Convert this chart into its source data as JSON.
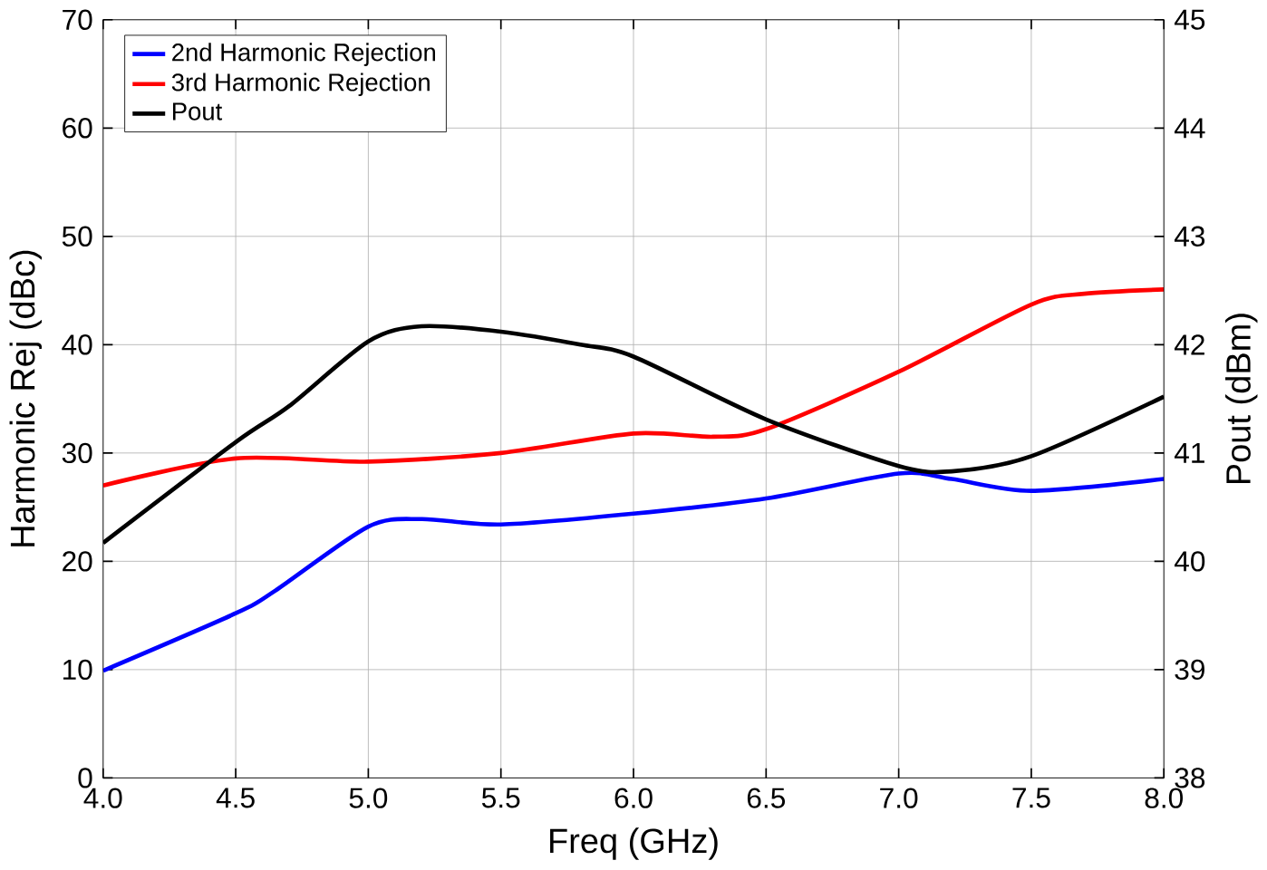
{
  "chart_data": {
    "type": "line",
    "xlabel": "Freq (GHz)",
    "ylabel": "Harmonic Rej (dBc)",
    "y2label": "Pout (dBm)",
    "xlim": [
      4,
      8
    ],
    "xticks": [
      {
        "value": 4,
        "label": "4.0"
      },
      {
        "value": 4.5,
        "label": "4.5"
      },
      {
        "value": 5,
        "label": "5.0"
      },
      {
        "value": 5.5,
        "label": "5.5"
      },
      {
        "value": 6,
        "label": "6.0"
      },
      {
        "value": 6.5,
        "label": "6.5"
      },
      {
        "value": 7,
        "label": "7.0"
      },
      {
        "value": 7.5,
        "label": "7.5"
      },
      {
        "value": 8,
        "label": "8.0"
      }
    ],
    "ylim": [
      0,
      70
    ],
    "yticks": [
      0,
      10,
      20,
      30,
      40,
      50,
      60,
      70
    ],
    "y2lim": [
      38,
      45
    ],
    "y2ticks": [
      38,
      39,
      40,
      41,
      42,
      43,
      44,
      45
    ],
    "grid": true,
    "legend": "top left",
    "line_style": "solid",
    "marker": "none",
    "series": [
      {
        "name": "2nd Harmonic Rejection",
        "color": "#0000ff",
        "x": [
          4.0,
          4.5,
          4.65,
          5.0,
          5.2,
          5.5,
          6.0,
          6.5,
          7.0,
          7.2,
          7.5,
          8.0
        ],
        "values": [
          9.9,
          15.2,
          17.3,
          23.2,
          23.9,
          23.4,
          24.4,
          25.8,
          28.1,
          27.6,
          26.5,
          27.6
        ]
      },
      {
        "name": "3rd Harmonic Rejection",
        "color": "#ff0000",
        "x": [
          4.0,
          4.5,
          5.0,
          5.5,
          6.0,
          6.3,
          6.5,
          7.0,
          7.5,
          7.7,
          8.0
        ],
        "values": [
          27,
          29.5,
          29.2,
          30,
          31.8,
          31.5,
          32.2,
          37.5,
          43.7,
          44.7,
          45.1
        ]
      },
      {
        "name": "Pout",
        "color": "#000000",
        "axis": "y2",
        "x": [
          4.0,
          4.5,
          4.7,
          5.0,
          5.2,
          5.5,
          5.8,
          6.0,
          6.5,
          7.0,
          7.2,
          7.5,
          8.0
        ],
        "values": [
          40.17,
          41.1,
          41.43,
          42.03,
          42.17,
          42.12,
          42.0,
          41.89,
          41.31,
          40.88,
          40.83,
          40.97,
          41.52
        ]
      }
    ]
  }
}
